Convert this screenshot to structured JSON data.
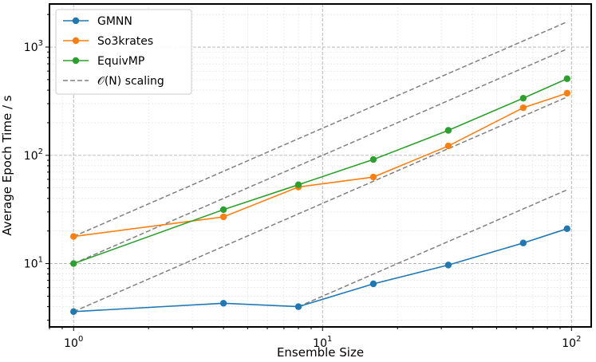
{
  "chart_data": {
    "type": "line",
    "xlabel": "Ensemble Size",
    "ylabel": "Average Epoch Time / s",
    "xscale": "log",
    "yscale": "log",
    "xlim": [
      0.8,
      120
    ],
    "ylim": [
      2.6,
      2500
    ],
    "grid": true,
    "legend_position": "top-left",
    "x_ticks": [
      {
        "value": 1,
        "base": "10",
        "exp": "0"
      },
      {
        "value": 10,
        "base": "10",
        "exp": "1"
      },
      {
        "value": 100,
        "base": "10",
        "exp": "2"
      }
    ],
    "y_ticks": [
      {
        "value": 10,
        "base": "10",
        "exp": "1"
      },
      {
        "value": 100,
        "base": "10",
        "exp": "2"
      },
      {
        "value": 1000,
        "base": "10",
        "exp": "3"
      }
    ],
    "x": [
      1,
      4,
      8,
      16,
      32,
      64,
      96
    ],
    "series": [
      {
        "name": "GMNN",
        "color": "#1f77b4",
        "values": [
          3.6,
          4.3,
          4.0,
          6.5,
          9.7,
          15.5,
          21
        ]
      },
      {
        "name": "So3krates",
        "color": "#ff7f0e",
        "values": [
          17.8,
          27,
          51,
          63,
          122,
          275,
          375
        ]
      },
      {
        "name": "EquivMP",
        "color": "#2ca02c",
        "values": [
          10,
          31.5,
          53.5,
          91.5,
          170,
          337,
          510
        ]
      }
    ],
    "reference_lines": [
      {
        "name": "O(N) scaling",
        "color": "#808080",
        "style": "dashed",
        "x": [
          1,
          96
        ],
        "y_at_start": [
          17.8,
          10,
          3.6
        ],
        "x_start_last": 8,
        "y_start_last": 4.0
      }
    ],
    "legend": {
      "entries": [
        {
          "label": "GMNN",
          "color": "#1f77b4",
          "style": "line-marker"
        },
        {
          "label": "So3krates",
          "color": "#ff7f0e",
          "style": "line-marker"
        },
        {
          "label": "EquivMP",
          "color": "#2ca02c",
          "style": "line-marker"
        },
        {
          "label": "𝒪(N) scaling",
          "color": "#808080",
          "style": "dashed"
        }
      ]
    }
  }
}
